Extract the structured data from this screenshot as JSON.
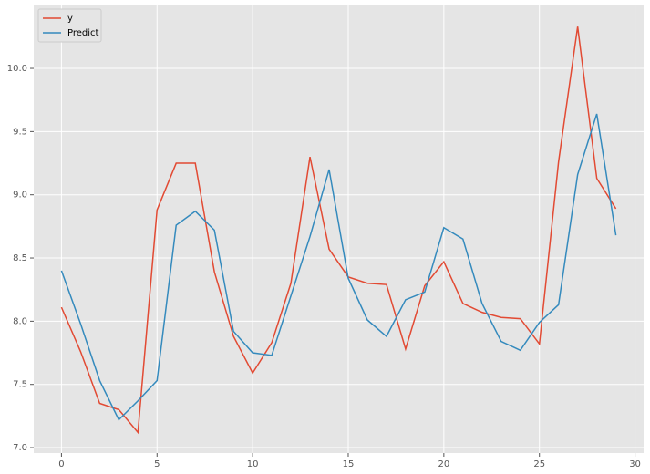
{
  "chart_data": {
    "type": "line",
    "x": [
      0,
      1,
      2,
      3,
      4,
      5,
      6,
      7,
      8,
      9,
      10,
      11,
      12,
      13,
      14,
      15,
      16,
      17,
      18,
      19,
      20,
      21,
      22,
      23,
      24,
      25,
      26,
      27,
      28,
      29
    ],
    "series": [
      {
        "name": "y",
        "color": "#E24A33",
        "values": [
          8.11,
          7.76,
          7.35,
          7.3,
          7.12,
          8.88,
          9.25,
          9.25,
          8.39,
          7.88,
          7.59,
          7.83,
          8.3,
          9.3,
          8.57,
          8.35,
          8.3,
          8.29,
          7.78,
          8.28,
          8.47,
          8.14,
          8.07,
          8.03,
          8.02,
          7.82,
          9.26,
          10.33,
          9.13,
          8.89
        ]
      },
      {
        "name": "Predict",
        "color": "#348ABD",
        "values": [
          8.4,
          7.98,
          7.53,
          7.22,
          7.37,
          7.53,
          8.76,
          8.87,
          8.72,
          7.92,
          7.75,
          7.73,
          8.2,
          8.67,
          9.2,
          8.34,
          8.01,
          7.88,
          8.17,
          8.23,
          8.74,
          8.65,
          8.14,
          7.84,
          7.77,
          7.99,
          8.13,
          9.16,
          9.64,
          8.68
        ]
      }
    ],
    "xlim": [
      -1.45,
      30.45
    ],
    "xticks": [
      0,
      5,
      10,
      15,
      20,
      25,
      30
    ],
    "ylim": [
      6.957,
      10.505
    ],
    "yticks": [
      {
        "value": 7,
        "label": "7.0"
      },
      {
        "value": 7.5,
        "label": "7.5"
      },
      {
        "value": 8,
        "label": "8.0"
      },
      {
        "value": 8.5,
        "label": "8.5"
      },
      {
        "value": 9,
        "label": "9.0"
      },
      {
        "value": 9.5,
        "label": "9.5"
      },
      {
        "value": 10,
        "label": "10.0"
      }
    ],
    "grid": true,
    "legend": "upper-left"
  }
}
